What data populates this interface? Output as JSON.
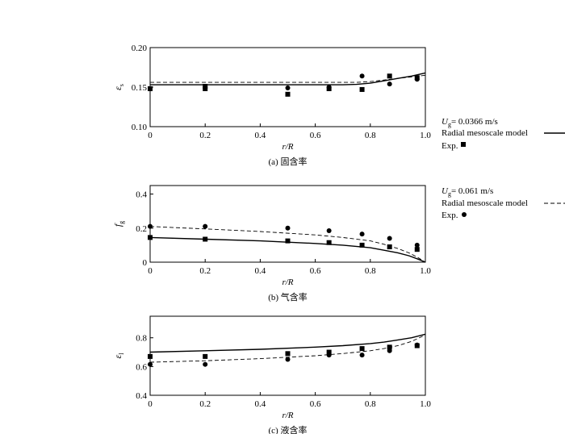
{
  "legends": [
    {
      "velocity_symbol": "U",
      "velocity_sub": "g",
      "velocity_value": "= 0.0366 m/s",
      "model_label": "Radial mesoscale model",
      "exp_label": "Exp.",
      "exp_marker": "square",
      "line_style": "solid"
    },
    {
      "velocity_symbol": "U",
      "velocity_sub": "g",
      "velocity_value": "= 0.061 m/s",
      "model_label": "Radial mesoscale model",
      "exp_label": "Exp.",
      "exp_marker": "circle",
      "line_style": "dashed"
    }
  ],
  "chart_data": [
    {
      "type": "line",
      "caption": "(a) 固含率",
      "xlabel": "r/R",
      "ylabel": {
        "symbol": "ε",
        "sub": "s"
      },
      "xlim": [
        0,
        1.0
      ],
      "ylim": [
        0.1,
        0.2
      ],
      "xticks": [
        0,
        0.2,
        0.4,
        0.6,
        0.8,
        1.0
      ],
      "xtick_labels": [
        "0",
        "0.2",
        "0.4",
        "0.6",
        "0.8",
        "1.0"
      ],
      "yticks": [
        0.1,
        0.15,
        0.2
      ],
      "ytick_labels": [
        "0.10",
        "0.15",
        "0.20"
      ],
      "series": [
        {
          "style": "solid",
          "kind": "line",
          "x": [
            0,
            0.2,
            0.4,
            0.6,
            0.7,
            0.75,
            0.8,
            0.85,
            0.9,
            0.95,
            1.0
          ],
          "y": [
            0.153,
            0.153,
            0.153,
            0.153,
            0.153,
            0.1535,
            0.155,
            0.158,
            0.161,
            0.164,
            0.168
          ]
        },
        {
          "style": "dashed",
          "kind": "line",
          "x": [
            0,
            0.2,
            0.4,
            0.6,
            0.7,
            0.75,
            0.8,
            0.85,
            0.9,
            0.95,
            1.0
          ],
          "y": [
            0.156,
            0.156,
            0.156,
            0.156,
            0.156,
            0.156,
            0.157,
            0.159,
            0.161,
            0.163,
            0.165
          ]
        },
        {
          "style": "square",
          "kind": "points",
          "x": [
            0.0,
            0.2,
            0.2,
            0.5,
            0.65,
            0.77,
            0.87,
            0.97
          ],
          "y": [
            0.148,
            0.148,
            0.151,
            0.141,
            0.148,
            0.147,
            0.164,
            0.162
          ]
        },
        {
          "style": "circle",
          "kind": "points",
          "x": [
            0.5,
            0.65,
            0.77,
            0.87,
            0.97
          ],
          "y": [
            0.149,
            0.15,
            0.164,
            0.154,
            0.16
          ]
        }
      ]
    },
    {
      "type": "line",
      "caption": "(b) 气含率",
      "xlabel": "r/R",
      "ylabel": {
        "symbol": "f",
        "sub": "g"
      },
      "xlim": [
        0,
        1.0
      ],
      "ylim": [
        0,
        0.45
      ],
      "xticks": [
        0,
        0.2,
        0.4,
        0.6,
        0.8,
        1.0
      ],
      "xtick_labels": [
        "0",
        "0.2",
        "0.4",
        "0.6",
        "0.8",
        "1.0"
      ],
      "yticks": [
        0,
        0.2,
        0.4
      ],
      "ytick_labels": [
        "0",
        "0.2",
        "0.4"
      ],
      "series": [
        {
          "style": "solid",
          "kind": "line",
          "x": [
            0,
            0.2,
            0.4,
            0.6,
            0.7,
            0.8,
            0.85,
            0.9,
            0.94,
            0.97,
            1.0
          ],
          "y": [
            0.145,
            0.135,
            0.125,
            0.11,
            0.1,
            0.085,
            0.07,
            0.055,
            0.038,
            0.02,
            0.0
          ]
        },
        {
          "style": "dashed",
          "kind": "line",
          "x": [
            0,
            0.2,
            0.4,
            0.6,
            0.7,
            0.8,
            0.85,
            0.9,
            0.94,
            0.97,
            1.0
          ],
          "y": [
            0.21,
            0.195,
            0.18,
            0.16,
            0.145,
            0.125,
            0.105,
            0.08,
            0.055,
            0.03,
            0.0
          ]
        },
        {
          "style": "square",
          "kind": "points",
          "x": [
            0.0,
            0.2,
            0.5,
            0.65,
            0.77,
            0.87,
            0.97
          ],
          "y": [
            0.145,
            0.135,
            0.125,
            0.115,
            0.1,
            0.09,
            0.075
          ]
        },
        {
          "style": "circle",
          "kind": "points",
          "x": [
            0.0,
            0.2,
            0.5,
            0.65,
            0.77,
            0.87,
            0.97
          ],
          "y": [
            0.21,
            0.21,
            0.2,
            0.185,
            0.165,
            0.14,
            0.1
          ]
        }
      ]
    },
    {
      "type": "line",
      "caption": "(c) 液含率",
      "xlabel": "r/R",
      "ylabel": {
        "symbol": "ε",
        "sub": "l"
      },
      "xlim": [
        0,
        1.0
      ],
      "ylim": [
        0.4,
        0.95
      ],
      "xticks": [
        0,
        0.2,
        0.4,
        0.6,
        0.8,
        1.0
      ],
      "xtick_labels": [
        "0",
        "0.2",
        "0.4",
        "0.6",
        "0.8",
        "1.0"
      ],
      "yticks": [
        0.4,
        0.6,
        0.8
      ],
      "ytick_labels": [
        "0.4",
        "0.6",
        "0.8"
      ],
      "series": [
        {
          "style": "solid",
          "kind": "line",
          "x": [
            0,
            0.2,
            0.4,
            0.6,
            0.7,
            0.8,
            0.85,
            0.9,
            0.95,
            1.0
          ],
          "y": [
            0.7,
            0.71,
            0.72,
            0.735,
            0.745,
            0.76,
            0.77,
            0.785,
            0.8,
            0.825
          ]
        },
        {
          "style": "dashed",
          "kind": "line",
          "x": [
            0,
            0.2,
            0.4,
            0.6,
            0.7,
            0.8,
            0.85,
            0.9,
            0.95,
            1.0
          ],
          "y": [
            0.63,
            0.64,
            0.655,
            0.675,
            0.69,
            0.71,
            0.725,
            0.745,
            0.775,
            0.82
          ]
        },
        {
          "style": "square",
          "kind": "points",
          "x": [
            0.0,
            0.2,
            0.5,
            0.65,
            0.77,
            0.87,
            0.97
          ],
          "y": [
            0.67,
            0.67,
            0.69,
            0.7,
            0.725,
            0.735,
            0.745
          ]
        },
        {
          "style": "circle",
          "kind": "points",
          "x": [
            0.0,
            0.2,
            0.5,
            0.65,
            0.77,
            0.87,
            0.97
          ],
          "y": [
            0.615,
            0.615,
            0.65,
            0.68,
            0.68,
            0.71,
            0.75
          ]
        }
      ]
    }
  ]
}
